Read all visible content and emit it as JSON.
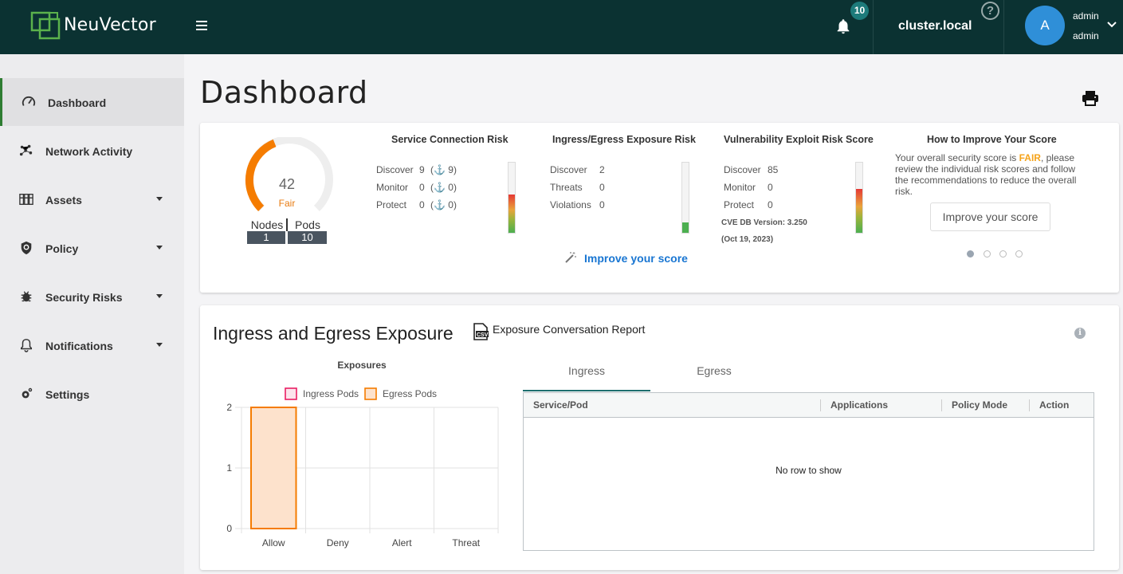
{
  "app": {
    "brand": "NeuVector",
    "notifications_count": "10",
    "cluster": "cluster.local",
    "help_glyph": "?",
    "avatar_letter": "A",
    "user_name": "admin",
    "user_role": "admin"
  },
  "sidebar": {
    "items": [
      {
        "label": "Dashboard",
        "icon": "speedometer-icon",
        "active": true
      },
      {
        "label": "Network Activity",
        "icon": "network-icon"
      },
      {
        "label": "Assets",
        "icon": "assets-icon",
        "expandable": true
      },
      {
        "label": "Policy",
        "icon": "shield-icon",
        "expandable": true
      },
      {
        "label": "Security Risks",
        "icon": "bug-icon",
        "expandable": true
      },
      {
        "label": "Notifications",
        "icon": "bell-icon",
        "expandable": true
      },
      {
        "label": "Settings",
        "icon": "gear-icon"
      }
    ]
  },
  "page": {
    "title": "Dashboard"
  },
  "score": {
    "value": "42",
    "value_fraction": 0.42,
    "grade": "Fair",
    "nodes_label": "Nodes",
    "pods_label": "Pods",
    "nodes": "1",
    "pods": "10",
    "accent": "#f57c00"
  },
  "service_risk": {
    "title": "Service Connection Risk",
    "rows": [
      {
        "label": "Discover",
        "value": "9",
        "extra": "(⚓ 9)"
      },
      {
        "label": "Monitor",
        "value": "0",
        "extra": "(⚓ 0)"
      },
      {
        "label": "Protect",
        "value": "0",
        "extra": "(⚓ 0)"
      }
    ],
    "level_fraction": 0.55
  },
  "exposure_risk": {
    "title": "Ingress/Egress Exposure Risk",
    "rows": [
      {
        "label": "Discover",
        "value": "2"
      },
      {
        "label": "Threats",
        "value": "0"
      },
      {
        "label": "Violations",
        "value": "0"
      }
    ],
    "level_fraction": 0.15
  },
  "vuln_risk": {
    "title": "Vulnerability Exploit Risk Score",
    "rows": [
      {
        "label": "Discover",
        "value": "85"
      },
      {
        "label": "Monitor",
        "value": "0"
      },
      {
        "label": "Protect",
        "value": "0"
      }
    ],
    "cve_version": "CVE DB Version: 3.250",
    "cve_date": "(Oct 19, 2023)",
    "level_fraction": 0.62
  },
  "improve": {
    "link_label": "Improve your score",
    "title": "How to Improve Your Score",
    "text_before": "Your overall security score is ",
    "grade": "FAIR",
    "text_after": ", please review the individual risk scores and follow the recommendations to reduce the overall risk.",
    "button_label": "Improve your score",
    "carousel_pages": 4,
    "carousel_active": 0
  },
  "exposure_section": {
    "title": "Ingress and Egress Exposure",
    "report_label": "Exposure Conversation Report",
    "info_glyph": "i",
    "tabs": [
      "Ingress",
      "Egress"
    ],
    "active_tab": 0,
    "columns": [
      "Service/Pod",
      "Applications",
      "Policy Mode",
      "Action"
    ],
    "empty_text": "No row to show"
  },
  "chart_data": {
    "type": "bar",
    "title": "Exposures",
    "categories": [
      "Allow",
      "Deny",
      "Alert",
      "Threat"
    ],
    "series": [
      {
        "name": "Ingress Pods",
        "values": [
          0,
          0,
          0,
          0
        ],
        "color": "#e91e63"
      },
      {
        "name": "Egress Pods",
        "values": [
          2,
          0,
          0,
          0
        ],
        "color": "#f57c00"
      }
    ],
    "ylim": [
      0,
      2
    ],
    "yticks": [
      "0",
      "1",
      "2"
    ],
    "grid": true,
    "legend_position": "top"
  }
}
